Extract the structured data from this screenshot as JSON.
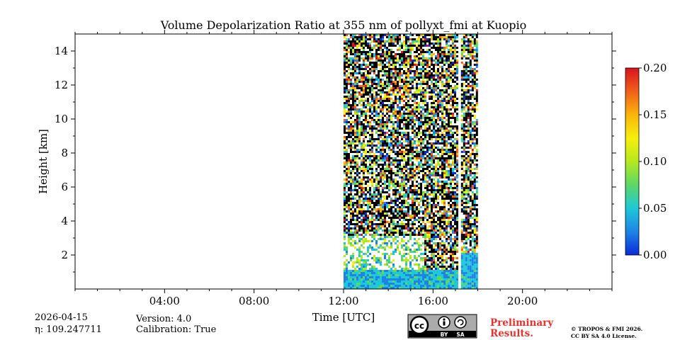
{
  "chart_data": {
    "type": "heatmap",
    "title": "Volume Depolarization Ratio at 355 nm of pollyxt_fmi at Kuopio",
    "xlabel": "Time [UTC]",
    "ylabel": "Height [km]",
    "x_range_hours": [
      0,
      24
    ],
    "ylim": [
      0,
      15
    ],
    "x_ticks": [
      {
        "hour": 4,
        "label": "04:00"
      },
      {
        "hour": 8,
        "label": "08:00"
      },
      {
        "hour": 12,
        "label": "12:00"
      },
      {
        "hour": 16,
        "label": "16:00"
      },
      {
        "hour": 20,
        "label": "20:00"
      }
    ],
    "y_ticks": [
      {
        "value": 2,
        "label": "2"
      },
      {
        "value": 4,
        "label": "4"
      },
      {
        "value": 6,
        "label": "6"
      },
      {
        "value": 8,
        "label": "8"
      },
      {
        "value": 10,
        "label": "10"
      },
      {
        "value": 12,
        "label": "12"
      },
      {
        "value": 14,
        "label": "14"
      }
    ],
    "data_segments": [
      {
        "start_hour": 12.0,
        "end_hour": 17.05,
        "top_km": 15.0
      },
      {
        "start_hour": 17.25,
        "end_hour": 18.0,
        "top_km": 15.0
      }
    ],
    "colorbar": {
      "min": 0.0,
      "max": 0.2,
      "ticks": [
        "0.00",
        "0.05",
        "0.10",
        "0.15",
        "0.20"
      ],
      "colors": [
        "#0a2ad8",
        "#1d84e6",
        "#1fc8d8",
        "#5bd866",
        "#b6e81f",
        "#f5f00c",
        "#fab50a",
        "#f0601a",
        "#d8141e"
      ]
    }
  },
  "footer": {
    "date": "2026-04-15",
    "eta": "η: 109.247711",
    "version": "Version: 4.0",
    "calibration": "Calibration: True",
    "preliminary_line1": "Preliminary",
    "preliminary_line2": "Results.",
    "license_line1": "© TROPOS & FMI 2026.",
    "license_line2": "CC BY SA 4.0 License.",
    "cc_badge": {
      "label_by": "BY",
      "label_sa": "SA",
      "logo_text": "cc"
    }
  }
}
